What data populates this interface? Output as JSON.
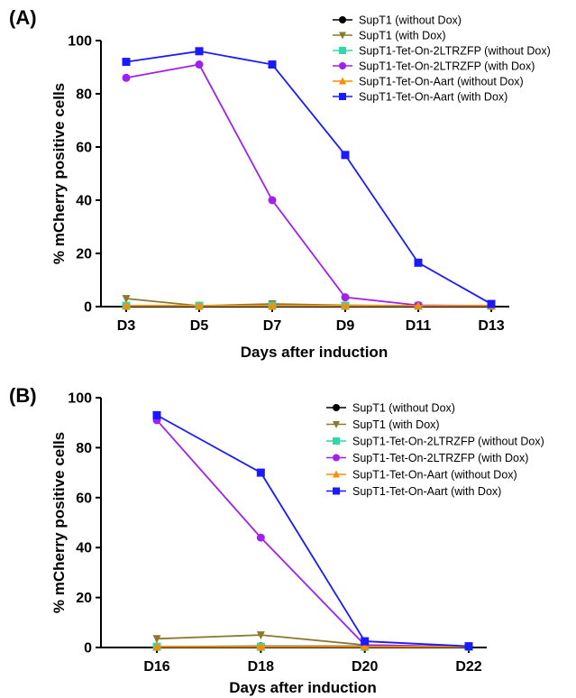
{
  "chart_data": [
    {
      "panel": "(A)",
      "type": "line",
      "categories": [
        "D3",
        "D5",
        "D7",
        "D9",
        "D11",
        "D13"
      ],
      "xlabel": "Days after induction",
      "ylabel": "% mCherry positive cells",
      "ylim": [
        0,
        100
      ],
      "yticks": [
        "0",
        "20",
        "40",
        "60",
        "80",
        "100"
      ],
      "legend_position": "top-right",
      "series": [
        {
          "name": "SupT1 (without Dox)",
          "color": "#000000",
          "marker": "circle",
          "values": [
            0.3,
            0.3,
            0.3,
            0.3,
            0.3,
            0.3
          ]
        },
        {
          "name": "SupT1 (with Dox)",
          "color": "#8B7A2E",
          "marker": "triangle-down",
          "values": [
            3,
            0.3,
            1,
            0.5,
            0.3,
            0.3
          ]
        },
        {
          "name": "SupT1-Tet-On-2LTRZFP (without Dox)",
          "color": "#33D6A8",
          "marker": "square",
          "values": [
            0.3,
            0.3,
            0.3,
            0.3,
            0.3,
            0.3
          ]
        },
        {
          "name": "SupT1-Tet-On-2LTRZFP (with Dox)",
          "color": "#A020F0",
          "marker": "circle",
          "values": [
            86,
            91,
            40,
            3.5,
            0.5,
            0.3
          ]
        },
        {
          "name": "SupT1-Tet-On-Aart (without Dox)",
          "color": "#FF8C00",
          "marker": "triangle-up",
          "values": [
            0.3,
            0.3,
            0.3,
            0.3,
            0.3,
            0.3
          ]
        },
        {
          "name": "SupT1-Tet-On-Aart (with Dox)",
          "color": "#1A1AFF",
          "marker": "square",
          "values": [
            92,
            96,
            91,
            57,
            16.5,
            1
          ]
        }
      ]
    },
    {
      "panel": "(B)",
      "type": "line",
      "categories": [
        "D16",
        "D18",
        "D20",
        "D22"
      ],
      "xlabel": "Days after induction",
      "ylabel": "% mCherry positive cells",
      "ylim": [
        0,
        100
      ],
      "yticks": [
        "0",
        "20",
        "40",
        "60",
        "80",
        "100"
      ],
      "legend_position": "top-right",
      "series": [
        {
          "name": "SupT1 (without Dox)",
          "color": "#000000",
          "marker": "circle",
          "values": [
            0.3,
            0.5,
            0.5,
            0.3
          ]
        },
        {
          "name": "SupT1 (with Dox)",
          "color": "#8B7A2E",
          "marker": "triangle-down",
          "values": [
            3.5,
            5,
            1,
            0.3
          ]
        },
        {
          "name": "SupT1-Tet-On-2LTRZFP (without Dox)",
          "color": "#33D6A8",
          "marker": "square",
          "values": [
            0.3,
            0.3,
            0.3,
            0.3
          ]
        },
        {
          "name": "SupT1-Tet-On-2LTRZFP (with Dox)",
          "color": "#A020F0",
          "marker": "circle",
          "values": [
            91,
            44,
            1,
            0.3
          ]
        },
        {
          "name": "SupT1-Tet-On-Aart (without Dox)",
          "color": "#FF8C00",
          "marker": "triangle-up",
          "values": [
            0.3,
            0.3,
            0.3,
            0.3
          ]
        },
        {
          "name": "SupT1-Tet-On-Aart (with Dox)",
          "color": "#1A1AFF",
          "marker": "square",
          "values": [
            93,
            70,
            2.5,
            0.5
          ]
        }
      ]
    }
  ]
}
